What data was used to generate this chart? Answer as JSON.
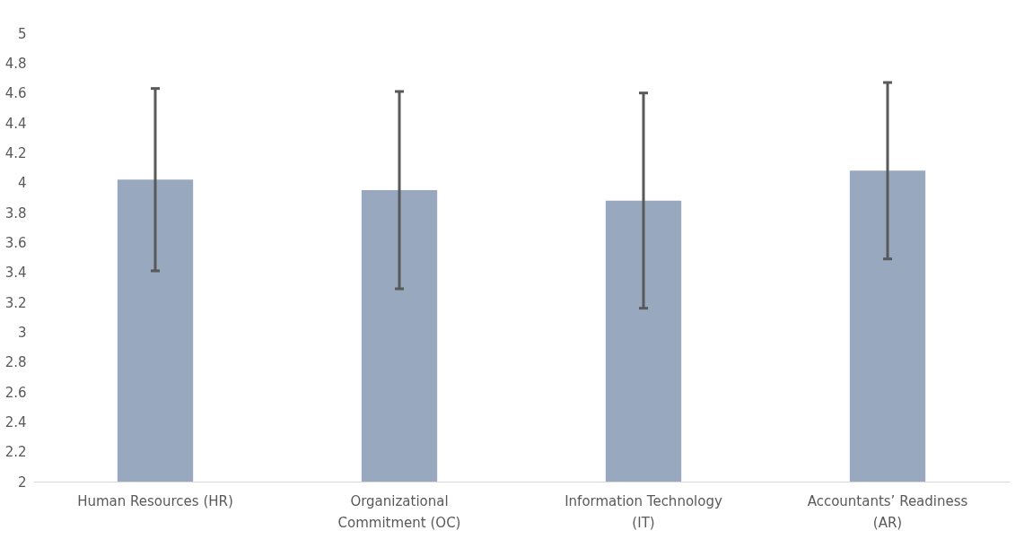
{
  "chart_data": {
    "type": "bar",
    "categories": [
      "Human Resources (HR)",
      "Organizational Commitment (OC)",
      "Information Technology (IT)",
      "Accountants’ Readiness (AR)"
    ],
    "values": [
      4.02,
      3.95,
      3.88,
      4.08
    ],
    "errors": [
      0.61,
      0.66,
      0.72,
      0.59
    ],
    "color": "#98a8bf",
    "ylim": [
      2,
      5
    ],
    "yticks": [
      2,
      2.2,
      2.4,
      2.6,
      2.8,
      3,
      3.2,
      3.4,
      3.6,
      3.8,
      4,
      4.2,
      4.4,
      4.6,
      4.8,
      5
    ],
    "grid": false,
    "legend": false
  }
}
